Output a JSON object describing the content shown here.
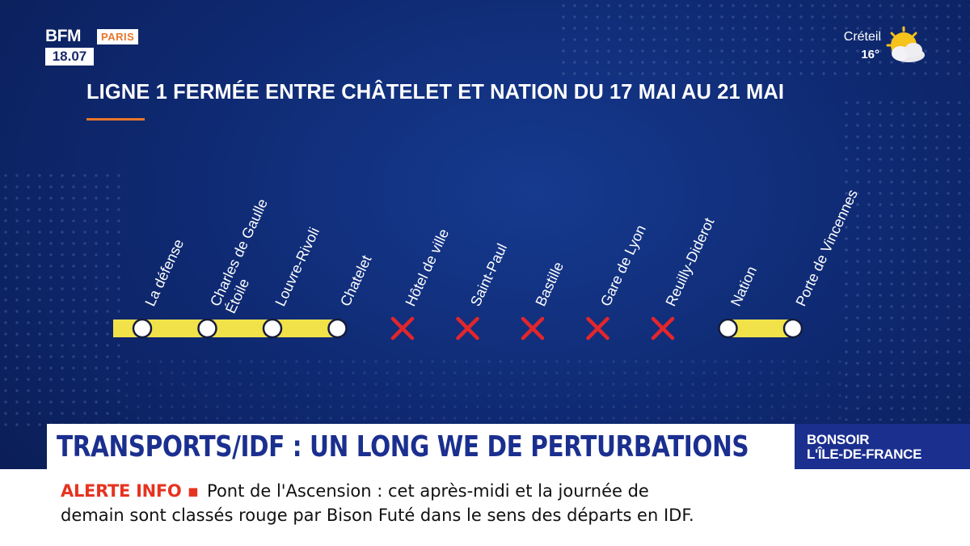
{
  "channel": {
    "brand": "BFM",
    "region": "PARIS",
    "time": "18.07"
  },
  "weather": {
    "city": "Créteil",
    "temperature": "16°",
    "icon": "sun-cloud-icon"
  },
  "graphic": {
    "title": "LIGNE 1 FERMÉE ENTRE CHÂTELET ET NATION DU 17 MAI AU 21 MAI",
    "accent_color": "#e8762a",
    "line_color": "#f2e24a",
    "closed_color": "#e3262b",
    "stations": [
      {
        "name": "La défense",
        "status": "open"
      },
      {
        "name": "Charles de Gaulle",
        "name_line2": "Étoile",
        "status": "open"
      },
      {
        "name": "Louvre-Rivoli",
        "status": "open"
      },
      {
        "name": "Chatelet",
        "status": "open"
      },
      {
        "name": "Hôtel de ville",
        "status": "closed"
      },
      {
        "name": "Saint-Paul",
        "status": "closed"
      },
      {
        "name": "Bastille",
        "status": "closed"
      },
      {
        "name": "Gare de Lyon",
        "status": "closed"
      },
      {
        "name": "Reuilly-Diderot",
        "status": "closed"
      },
      {
        "name": "Nation",
        "status": "open"
      },
      {
        "name": "Porte de Vincennes",
        "status": "open"
      }
    ]
  },
  "lower_third": {
    "headline": "TRANSPORTS/IDF : UN LONG WE DE PERTURBATIONS",
    "show_line1": "BONSOIR",
    "show_line2": "L'ÎLE-DE-FRANCE"
  },
  "ticker": {
    "tag": "ALERTE INFO",
    "line1": "Pont de l'Ascension : cet après-midi et la journée de",
    "line2": "demain sont classés rouge par Bison Futé dans le sens des départs en IDF."
  }
}
